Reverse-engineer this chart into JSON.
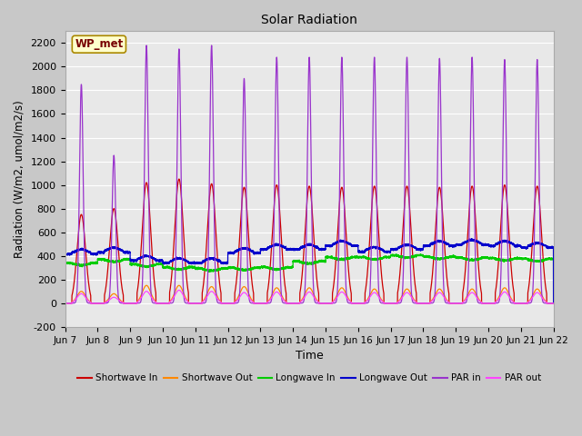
{
  "title": "Solar Radiation",
  "ylabel": "Radiation (W/m2, umol/m2/s)",
  "xlabel": "Time",
  "ylim": [
    -200,
    2300
  ],
  "yticks": [
    -200,
    0,
    200,
    400,
    600,
    800,
    1000,
    1200,
    1400,
    1600,
    1800,
    2000,
    2200
  ],
  "xlim": [
    0,
    15.0
  ],
  "xtick_labels": [
    "Jun 7",
    "Jun 8",
    "Jun 9",
    "Jun 10",
    "Jun 11",
    "Jun 12",
    "Jun 13",
    "Jun 14",
    "Jun 15",
    "Jun 16",
    "Jun 17",
    "Jun 18",
    "Jun 19",
    "Jun 20",
    "Jun 21",
    "Jun 22"
  ],
  "xtick_positions": [
    0,
    1,
    2,
    3,
    4,
    5,
    6,
    7,
    8,
    9,
    10,
    11,
    12,
    13,
    14,
    15
  ],
  "annotation_text": "WP_met",
  "colors": {
    "shortwave_in": "#cc0000",
    "shortwave_out": "#ff8800",
    "longwave_in": "#00cc00",
    "longwave_out": "#0000cc",
    "par_in": "#9933cc",
    "par_out": "#ff44ff"
  },
  "legend_colors": [
    "#cc0000",
    "#ff8800",
    "#00cc00",
    "#0000cc",
    "#9933cc",
    "#ff44ff"
  ],
  "legend_entries": [
    "Shortwave In",
    "Shortwave Out",
    "Longwave In",
    "Longwave Out",
    "PAR in",
    "PAR out"
  ],
  "num_days": 15,
  "shortwave_in_peaks": [
    750,
    800,
    1020,
    1050,
    1010,
    980,
    1000,
    990,
    980,
    990,
    990,
    980,
    990,
    1000,
    990
  ],
  "par_in_peaks": [
    1850,
    1250,
    2180,
    2150,
    2180,
    1900,
    2080,
    2080,
    2080,
    2080,
    2080,
    2070,
    2080,
    2060,
    2060
  ],
  "shortwave_out_peaks": [
    100,
    80,
    150,
    150,
    140,
    140,
    130,
    130,
    130,
    120,
    120,
    120,
    120,
    130,
    120
  ],
  "par_out_peaks": [
    80,
    50,
    100,
    110,
    100,
    90,
    95,
    95,
    95,
    90,
    90,
    90,
    90,
    95,
    90
  ],
  "longwave_in_vals": [
    340,
    370,
    330,
    305,
    295,
    300,
    305,
    355,
    390,
    390,
    405,
    395,
    385,
    380,
    375
  ],
  "longwave_out_vals": [
    415,
    430,
    360,
    340,
    340,
    425,
    455,
    455,
    485,
    435,
    455,
    485,
    495,
    485,
    470
  ],
  "fig_bg": "#c8c8c8",
  "plot_bg": "#e8e8e8"
}
